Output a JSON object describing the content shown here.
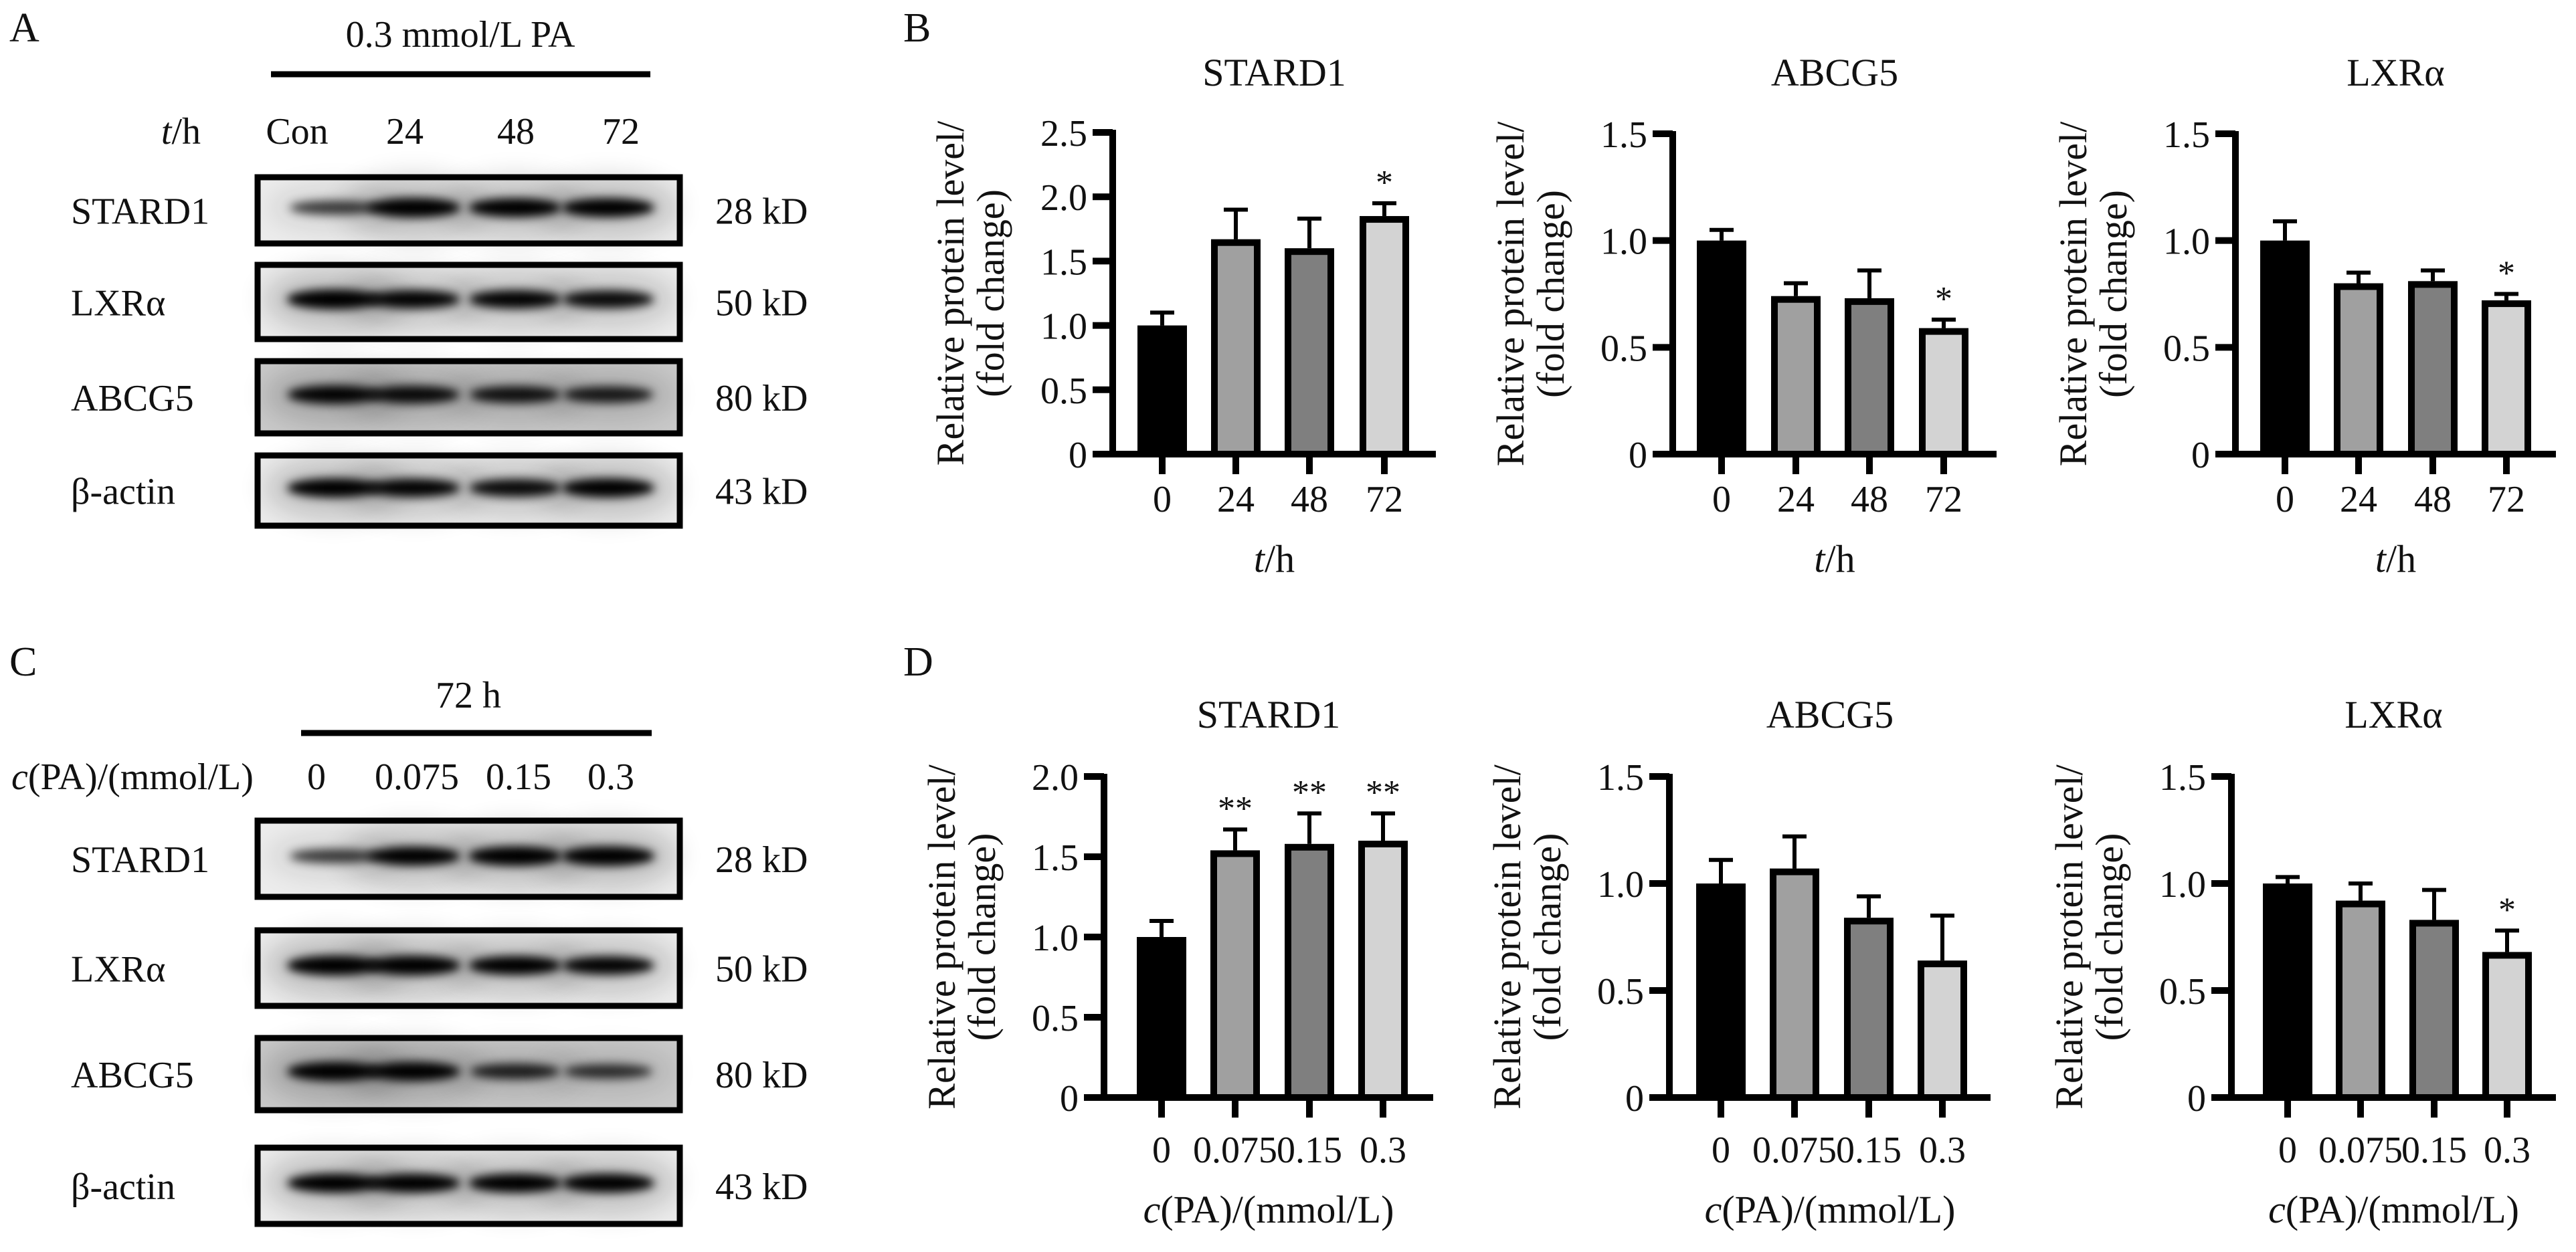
{
  "figure": {
    "panel_letters": [
      "A",
      "B",
      "C",
      "D"
    ]
  },
  "blots": [
    {
      "panel": "A",
      "header": "0.3 mmol/L PA",
      "row_label": "t/h",
      "row_label_italic": "t",
      "row_label_rest": "/h",
      "lanes": [
        "Con",
        "24",
        "48",
        "72"
      ],
      "proteins": [
        {
          "name": "STARD1",
          "size": "28 kD",
          "band_intensity": [
            0.55,
            1.0,
            0.95,
            0.95
          ]
        },
        {
          "name": "LXRα",
          "size": "50 kD",
          "band_intensity": [
            1.0,
            0.9,
            0.9,
            0.85
          ]
        },
        {
          "name": "ABCG5",
          "size": "80 kD",
          "band_intensity": [
            0.9,
            0.85,
            0.8,
            0.75
          ]
        },
        {
          "name": "β-actin",
          "size": "43 kD",
          "band_intensity": [
            0.95,
            0.9,
            0.85,
            0.95
          ]
        }
      ]
    },
    {
      "panel": "C",
      "header": "72 h",
      "row_label": "c(PA)/(mmol/L)",
      "row_label_italic": "c",
      "row_label_rest": "(PA)/(mmol/L)",
      "lanes": [
        "0",
        "0.075",
        "0.15",
        "0.3"
      ],
      "proteins": [
        {
          "name": "STARD1",
          "size": "28 kD",
          "band_intensity": [
            0.55,
            0.95,
            1.0,
            1.0
          ]
        },
        {
          "name": "LXRα",
          "size": "50 kD",
          "band_intensity": [
            1.0,
            1.0,
            0.95,
            0.9
          ]
        },
        {
          "name": "ABCG5",
          "size": "80 kD",
          "band_intensity": [
            0.95,
            0.95,
            0.7,
            0.6
          ]
        },
        {
          "name": "β-actin",
          "size": "43 kD",
          "band_intensity": [
            0.95,
            0.95,
            0.95,
            0.95
          ]
        }
      ]
    }
  ],
  "chart_data": [
    {
      "panel": "B",
      "type": "bar",
      "title": "STARD1",
      "categories": [
        "0",
        "24",
        "48",
        "72"
      ],
      "values": [
        1.0,
        1.67,
        1.6,
        1.85
      ],
      "errors": [
        0.1,
        0.23,
        0.23,
        0.1
      ],
      "significance": [
        "",
        "",
        "",
        "*"
      ],
      "xlabel": "t/h",
      "xlabel_italic": "t",
      "xlabel_rest": "/h",
      "ylabel": [
        "Relative protein level/",
        "(fold change)"
      ],
      "ylim": [
        0,
        2.5
      ],
      "yticks": [
        0,
        0.5,
        1.0,
        1.5,
        2.0,
        2.5
      ],
      "ytick_labels": [
        "0",
        "0.5",
        "1.0",
        "1.5",
        "2.0",
        "2.5"
      ]
    },
    {
      "panel": "B",
      "type": "bar",
      "title": "ABCG5",
      "categories": [
        "0",
        "24",
        "48",
        "72"
      ],
      "values": [
        1.0,
        0.74,
        0.73,
        0.59
      ],
      "errors": [
        0.05,
        0.06,
        0.13,
        0.04
      ],
      "significance": [
        "",
        "",
        "",
        "*"
      ],
      "xlabel": "t/h",
      "xlabel_italic": "t",
      "xlabel_rest": "/h",
      "ylabel": [
        "Relative protein level/",
        "(fold change)"
      ],
      "ylim": [
        0,
        1.5
      ],
      "yticks": [
        0,
        0.5,
        1.0,
        1.5
      ],
      "ytick_labels": [
        "0",
        "0.5",
        "1.0",
        "1.5"
      ]
    },
    {
      "panel": "B",
      "type": "bar",
      "title": "LXRα",
      "categories": [
        "0",
        "24",
        "48",
        "72"
      ],
      "values": [
        1.0,
        0.8,
        0.81,
        0.72
      ],
      "errors": [
        0.09,
        0.05,
        0.05,
        0.03
      ],
      "significance": [
        "",
        "",
        "",
        "*"
      ],
      "xlabel": "t/h",
      "xlabel_italic": "t",
      "xlabel_rest": "/h",
      "ylabel": [
        "Relative protein level/",
        "(fold change)"
      ],
      "ylim": [
        0,
        1.5
      ],
      "yticks": [
        0,
        0.5,
        1.0,
        1.5
      ],
      "ytick_labels": [
        "0",
        "0.5",
        "1.0",
        "1.5"
      ]
    },
    {
      "panel": "D",
      "type": "bar",
      "title": "STARD1",
      "categories": [
        "0",
        "0.075",
        "0.15",
        "0.3"
      ],
      "values": [
        1.0,
        1.54,
        1.58,
        1.6
      ],
      "errors": [
        0.1,
        0.13,
        0.19,
        0.17
      ],
      "significance": [
        "",
        "**",
        "**",
        "**"
      ],
      "xlabel": "c(PA)/(mmol/L)",
      "xlabel_italic": "c",
      "xlabel_rest": "(PA)/(mmol/L)",
      "ylabel": [
        "Relative protein level/",
        "(fold change)"
      ],
      "ylim": [
        0,
        2.0
      ],
      "yticks": [
        0,
        0.5,
        1.0,
        1.5,
        2.0
      ],
      "ytick_labels": [
        "0",
        "0.5",
        "1.0",
        "1.5",
        "2.0"
      ]
    },
    {
      "panel": "D",
      "type": "bar",
      "title": "ABCG5",
      "categories": [
        "0",
        "0.075",
        "0.15",
        "0.3"
      ],
      "values": [
        1.0,
        1.07,
        0.84,
        0.64
      ],
      "errors": [
        0.11,
        0.15,
        0.1,
        0.21
      ],
      "significance": [
        "",
        "",
        "",
        ""
      ],
      "xlabel": "c(PA)/(mmol/L)",
      "xlabel_italic": "c",
      "xlabel_rest": "(PA)/(mmol/L)",
      "ylabel": [
        "Relative protein level/",
        "(fold change)"
      ],
      "ylim": [
        0,
        1.5
      ],
      "yticks": [
        0,
        0.5,
        1.0,
        1.5
      ],
      "ytick_labels": [
        "0",
        "0.5",
        "1.0",
        "1.5"
      ]
    },
    {
      "panel": "D",
      "type": "bar",
      "title": "LXRα",
      "categories": [
        "0",
        "0.075",
        "0.15",
        "0.3"
      ],
      "values": [
        1.0,
        0.92,
        0.83,
        0.68
      ],
      "errors": [
        0.03,
        0.08,
        0.14,
        0.1
      ],
      "significance": [
        "",
        "",
        "",
        "*"
      ],
      "xlabel": "c(PA)/(mmol/L)",
      "xlabel_italic": "c",
      "xlabel_rest": "(PA)/(mmol/L)",
      "ylabel": [
        "Relative protein level/",
        "(fold change)"
      ],
      "ylim": [
        0,
        1.5
      ],
      "yticks": [
        0,
        0.5,
        1.0,
        1.5
      ],
      "ytick_labels": [
        "0",
        "0.5",
        "1.0",
        "1.5"
      ]
    }
  ],
  "bar_colors": [
    "#000000",
    "#a0a0a0",
    "#7f7f7f",
    "#d3d3d3"
  ]
}
